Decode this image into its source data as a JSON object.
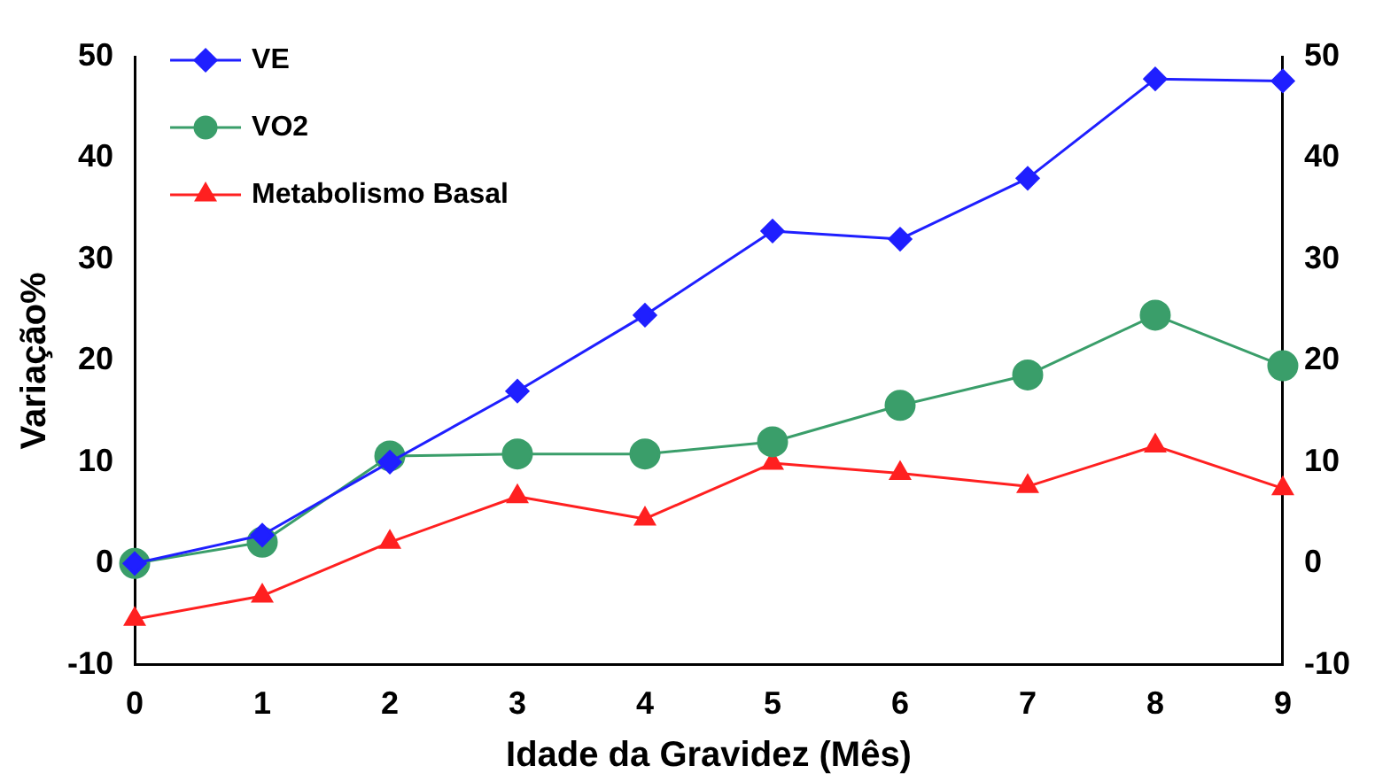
{
  "chart_data": {
    "type": "line",
    "xlabel": "Idade da Gravidez (Mês)",
    "ylabel": "Variação%",
    "x": [
      0,
      1,
      2,
      3,
      4,
      5,
      6,
      7,
      8,
      9
    ],
    "xlim": [
      0,
      9
    ],
    "xticks": [
      0,
      1,
      2,
      3,
      4,
      5,
      6,
      7,
      8,
      9
    ],
    "ylim": [
      -10,
      50
    ],
    "yticks": [
      -10,
      0,
      10,
      20,
      30,
      40,
      50
    ],
    "y2lim": [
      -10,
      50
    ],
    "y2ticks": [
      -10,
      0,
      10,
      20,
      30,
      40,
      50
    ],
    "grid": false,
    "legend": "top left",
    "series": [
      {
        "name": "VE",
        "color": "#1f1fff",
        "marker": "diamond",
        "values": [
          0,
          2.8,
          10,
          17,
          24.5,
          32.8,
          32,
          38,
          47.8,
          47.6
        ]
      },
      {
        "name": "VO2",
        "color": "#3a9e6a",
        "marker": "circle",
        "values": [
          0,
          2.1,
          10.6,
          10.8,
          10.8,
          12,
          15.6,
          18.6,
          24.5,
          19.5
        ]
      },
      {
        "name": "Metabolismo Basal",
        "color": "#ff2020",
        "marker": "triangle",
        "values": [
          -5.5,
          -3.2,
          2.1,
          6.6,
          4.4,
          9.9,
          8.9,
          7.6,
          11.6,
          7.4
        ]
      }
    ]
  }
}
